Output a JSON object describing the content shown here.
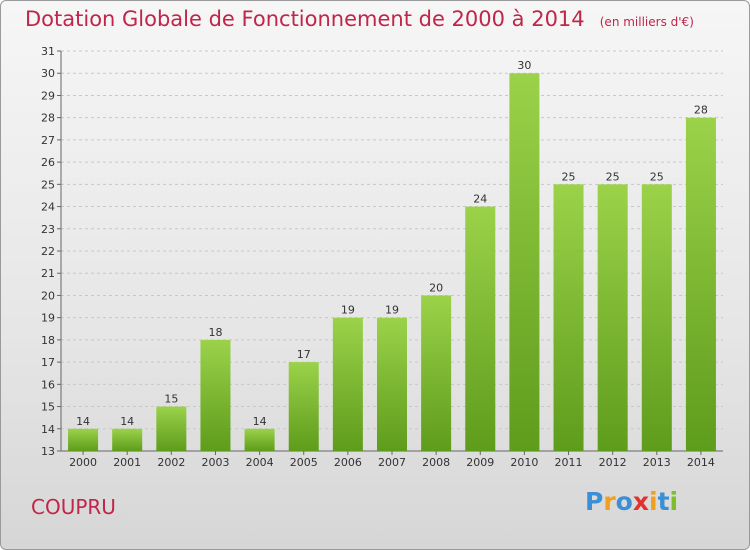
{
  "header": {
    "title": "Dotation Globale de Fonctionnement de 2000 à 2014",
    "subtitle": "(en milliers d'€)"
  },
  "footer": {
    "commune": "COUPRU",
    "brand": "Proxiti",
    "brand_letters": [
      {
        "ch": "P",
        "color": "#3a8fd6"
      },
      {
        "ch": "r",
        "color": "#f0a020"
      },
      {
        "ch": "o",
        "color": "#3a8fd6"
      },
      {
        "ch": "x",
        "color": "#e0332f"
      },
      {
        "ch": "i",
        "color": "#f0a020"
      },
      {
        "ch": "t",
        "color": "#3a8fd6"
      },
      {
        "ch": "i",
        "color": "#7cbf2a"
      }
    ]
  },
  "colors": {
    "bar_top": "#9bd24a",
    "bar_bottom": "#5e9c1b",
    "title": "#c0254a",
    "grid": "#c8c8c8"
  },
  "chart_data": {
    "type": "bar",
    "title": "Dotation Globale de Fonctionnement de 2000 à 2014",
    "subtitle": "(en milliers d'€)",
    "categories": [
      "2000",
      "2001",
      "2002",
      "2003",
      "2004",
      "2005",
      "2006",
      "2007",
      "2008",
      "2009",
      "2010",
      "2011",
      "2012",
      "2013",
      "2014"
    ],
    "values": [
      14,
      14,
      15,
      18,
      14,
      17,
      19,
      19,
      20,
      24,
      30,
      25,
      25,
      25,
      28
    ],
    "ylim": [
      13,
      31
    ],
    "yticks": [
      13,
      14,
      15,
      16,
      17,
      18,
      19,
      20,
      21,
      22,
      23,
      24,
      25,
      26,
      27,
      28,
      29,
      30,
      31
    ],
    "grid": true,
    "data_labels": true
  }
}
